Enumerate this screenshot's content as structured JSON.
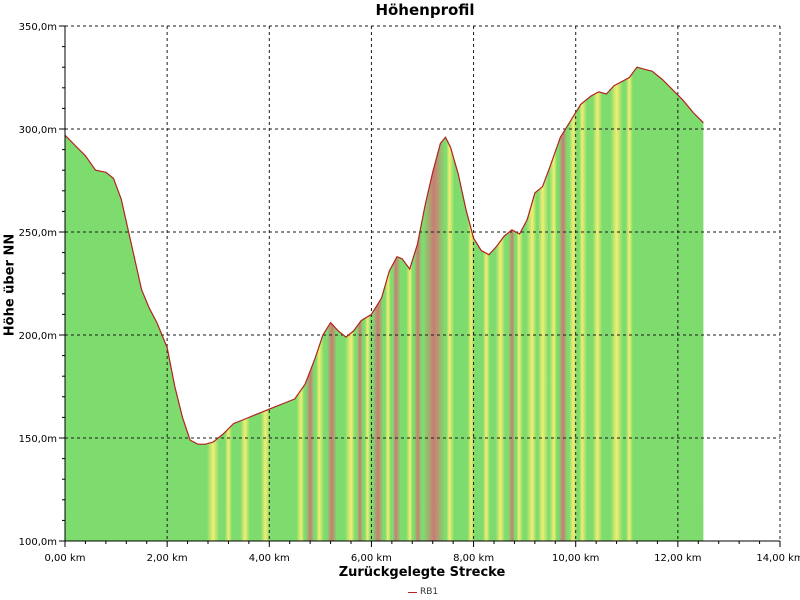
{
  "chart_data": {
    "type": "area",
    "title": "Höhenprofil",
    "xlabel": "Zurückgelegte Strecke",
    "ylabel": "Höhe über NN",
    "xlim": [
      0,
      14
    ],
    "ylim": [
      100,
      350
    ],
    "x_ticks": [
      0,
      2,
      4,
      6,
      8,
      10,
      12,
      14
    ],
    "x_tick_labels": [
      "0,00 km",
      "2,00 km",
      "4,00 km",
      "6,00 km",
      "8,00 km",
      "10,00 km",
      "12,00 km",
      "14,00 km"
    ],
    "y_ticks": [
      100,
      150,
      200,
      250,
      300,
      350
    ],
    "y_tick_labels": [
      "100,0m",
      "150,0m",
      "200,0m",
      "250,0m",
      "300,0m",
      "350,0m"
    ],
    "grid": true,
    "legend_position": "bottom-center",
    "series": [
      {
        "name": "RB1",
        "color": "#b22222",
        "x": [
          0,
          0.2,
          0.4,
          0.6,
          0.8,
          0.95,
          1.1,
          1.3,
          1.5,
          1.65,
          1.8,
          2.0,
          2.15,
          2.3,
          2.45,
          2.6,
          2.75,
          2.9,
          3.1,
          3.3,
          3.5,
          3.7,
          3.9,
          4.1,
          4.3,
          4.5,
          4.7,
          4.9,
          5.05,
          5.2,
          5.35,
          5.5,
          5.65,
          5.8,
          6.0,
          6.2,
          6.35,
          6.5,
          6.6,
          6.75,
          6.9,
          7.05,
          7.2,
          7.35,
          7.45,
          7.55,
          7.7,
          7.85,
          8.0,
          8.15,
          8.3,
          8.45,
          8.6,
          8.75,
          8.9,
          9.05,
          9.2,
          9.35,
          9.5,
          9.7,
          9.9,
          10.1,
          10.3,
          10.45,
          10.6,
          10.75,
          10.9,
          11.05,
          11.2,
          11.35,
          11.5,
          11.7,
          11.9,
          12.1,
          12.3,
          12.5
        ],
        "values": [
          297,
          292,
          287,
          280,
          279,
          276,
          266,
          244,
          222,
          213,
          206,
          194,
          175,
          160,
          149,
          147,
          147,
          148,
          152,
          157,
          159,
          161,
          163,
          165,
          167,
          169,
          176,
          189,
          200,
          206,
          202,
          199,
          202,
          207,
          210,
          218,
          231,
          238,
          237,
          232,
          244,
          263,
          279,
          293,
          296,
          291,
          278,
          261,
          247,
          241,
          239,
          243,
          248,
          251,
          249,
          256,
          269,
          272,
          282,
          296,
          304,
          312,
          316,
          318,
          317,
          321,
          323,
          325,
          330,
          329,
          328,
          324,
          319,
          314,
          308,
          303
        ]
      }
    ],
    "fill_colors": {
      "low": "#7edc6e",
      "mid": "#f3ee72",
      "high": "#cc7a74"
    },
    "steepness_bands": [
      [
        2.8,
        3.0,
        "mid"
      ],
      [
        3.15,
        3.25,
        "mid"
      ],
      [
        3.45,
        3.6,
        "mid"
      ],
      [
        3.85,
        4.0,
        "mid"
      ],
      [
        4.55,
        4.7,
        "mid"
      ],
      [
        4.7,
        4.9,
        "high"
      ],
      [
        4.9,
        5.05,
        "mid"
      ],
      [
        5.15,
        5.3,
        "high"
      ],
      [
        5.5,
        5.7,
        "mid"
      ],
      [
        5.7,
        5.85,
        "high"
      ],
      [
        5.85,
        6.0,
        "mid"
      ],
      [
        6.0,
        6.25,
        "high"
      ],
      [
        6.25,
        6.4,
        "mid"
      ],
      [
        6.4,
        6.55,
        "high"
      ],
      [
        6.7,
        6.82,
        "mid"
      ],
      [
        6.82,
        7.0,
        "high"
      ],
      [
        7.0,
        7.45,
        "high"
      ],
      [
        7.45,
        7.6,
        "mid"
      ],
      [
        7.9,
        8.0,
        "mid"
      ],
      [
        8.2,
        8.3,
        "mid"
      ],
      [
        8.45,
        8.6,
        "mid"
      ],
      [
        8.7,
        8.82,
        "high"
      ],
      [
        8.82,
        8.95,
        "mid"
      ],
      [
        9.05,
        9.25,
        "mid"
      ],
      [
        9.25,
        9.45,
        "mid"
      ],
      [
        9.5,
        9.65,
        "mid"
      ],
      [
        9.65,
        9.85,
        "high"
      ],
      [
        9.85,
        10.05,
        "mid"
      ],
      [
        10.05,
        10.2,
        "mid"
      ],
      [
        10.35,
        10.5,
        "mid"
      ],
      [
        10.7,
        10.9,
        "mid"
      ],
      [
        11.0,
        11.1,
        "mid"
      ]
    ]
  }
}
